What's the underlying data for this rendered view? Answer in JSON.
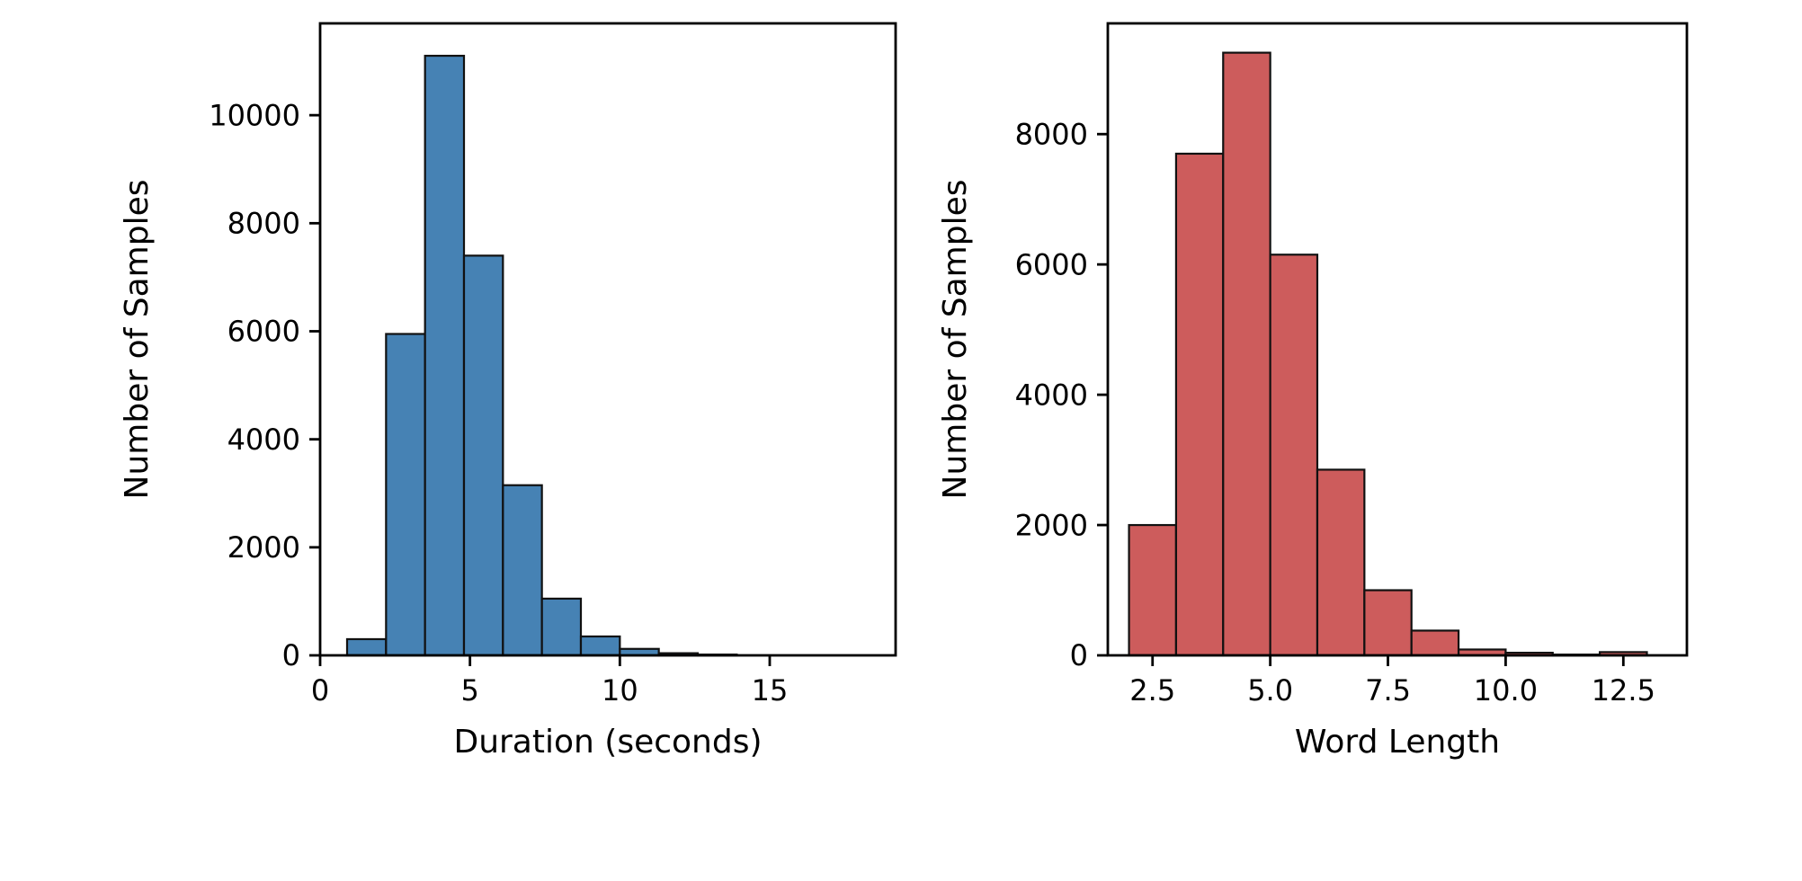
{
  "figure": {
    "background": "#ffffff"
  },
  "chart_data": [
    {
      "type": "bar",
      "kind": "histogram",
      "name": "duration-histogram",
      "title": "",
      "xlabel": "Duration (seconds)",
      "ylabel": "Number of Samples",
      "bar_color": "#4682B4",
      "edge_color": "#111111",
      "axis_color": "#000000",
      "bin_start": 0.9,
      "bin_width": 1.3,
      "values": [
        300,
        5950,
        11100,
        7400,
        3150,
        1050,
        350,
        120,
        40,
        15
      ],
      "xlim": [
        0,
        19.2
      ],
      "ylim": [
        0,
        11700
      ],
      "xtick_values": [
        0,
        5,
        10,
        15
      ],
      "xtick_labels": [
        "0",
        "5",
        "10",
        "15"
      ],
      "ytick_values": [
        0,
        2000,
        4000,
        6000,
        8000,
        10000
      ],
      "ytick_labels": [
        "0",
        "2000",
        "4000",
        "6000",
        "8000",
        "10000"
      ],
      "grid": false,
      "legend": null
    },
    {
      "type": "bar",
      "kind": "histogram",
      "name": "word-length-histogram",
      "title": "",
      "xlabel": "Word Length",
      "ylabel": "Number of Samples",
      "bar_color": "#CD5C5C",
      "edge_color": "#111111",
      "axis_color": "#000000",
      "bin_start": 2.0,
      "bin_width": 1.0,
      "values": [
        2000,
        7700,
        9250,
        6150,
        2850,
        1000,
        380,
        90,
        40,
        12,
        50
      ],
      "xlim": [
        1.55,
        13.85
      ],
      "ylim": [
        0,
        9700
      ],
      "xtick_values": [
        2.5,
        5.0,
        7.5,
        10.0,
        12.5
      ],
      "xtick_labels": [
        "2.5",
        "5.0",
        "7.5",
        "10.0",
        "12.5"
      ],
      "ytick_values": [
        0,
        2000,
        4000,
        6000,
        8000
      ],
      "ytick_labels": [
        "0",
        "2000",
        "4000",
        "6000",
        "8000"
      ],
      "grid": false,
      "legend": null
    }
  ]
}
